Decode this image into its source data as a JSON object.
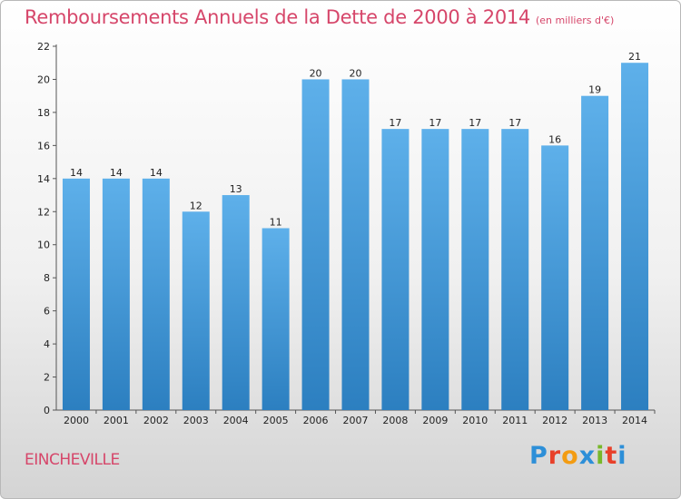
{
  "title": "Remboursements Annuels de la Dette de 2000 à 2014",
  "subtitle": "(en milliers d'€)",
  "place": "EINCHEVILLE",
  "logo": {
    "text": "Proxiti",
    "colors": [
      "#2d8fd8",
      "#e8402a",
      "#f39c12",
      "#2d8fd8",
      "#78b82a",
      "#e8402a",
      "#2d8fd8"
    ]
  },
  "colors": {
    "title": "#d6466a",
    "bar_light": "#5eb0ea",
    "bar_dark": "#2c7fc0"
  },
  "chart_data": {
    "type": "bar",
    "title": "Remboursements Annuels de la Dette de 2000 à 2014",
    "categories": [
      "2000",
      "2001",
      "2002",
      "2003",
      "2004",
      "2005",
      "2006",
      "2007",
      "2008",
      "2009",
      "2010",
      "2011",
      "2012",
      "2013",
      "2014"
    ],
    "values": [
      14,
      14,
      14,
      12,
      13,
      11,
      20,
      20,
      17,
      17,
      17,
      17,
      16,
      19,
      21
    ],
    "yticks": [
      0,
      2,
      4,
      6,
      8,
      10,
      12,
      14,
      16,
      18,
      20,
      22
    ],
    "ylim": [
      0,
      22
    ],
    "xlabel": "",
    "ylabel": "",
    "grid": false
  }
}
